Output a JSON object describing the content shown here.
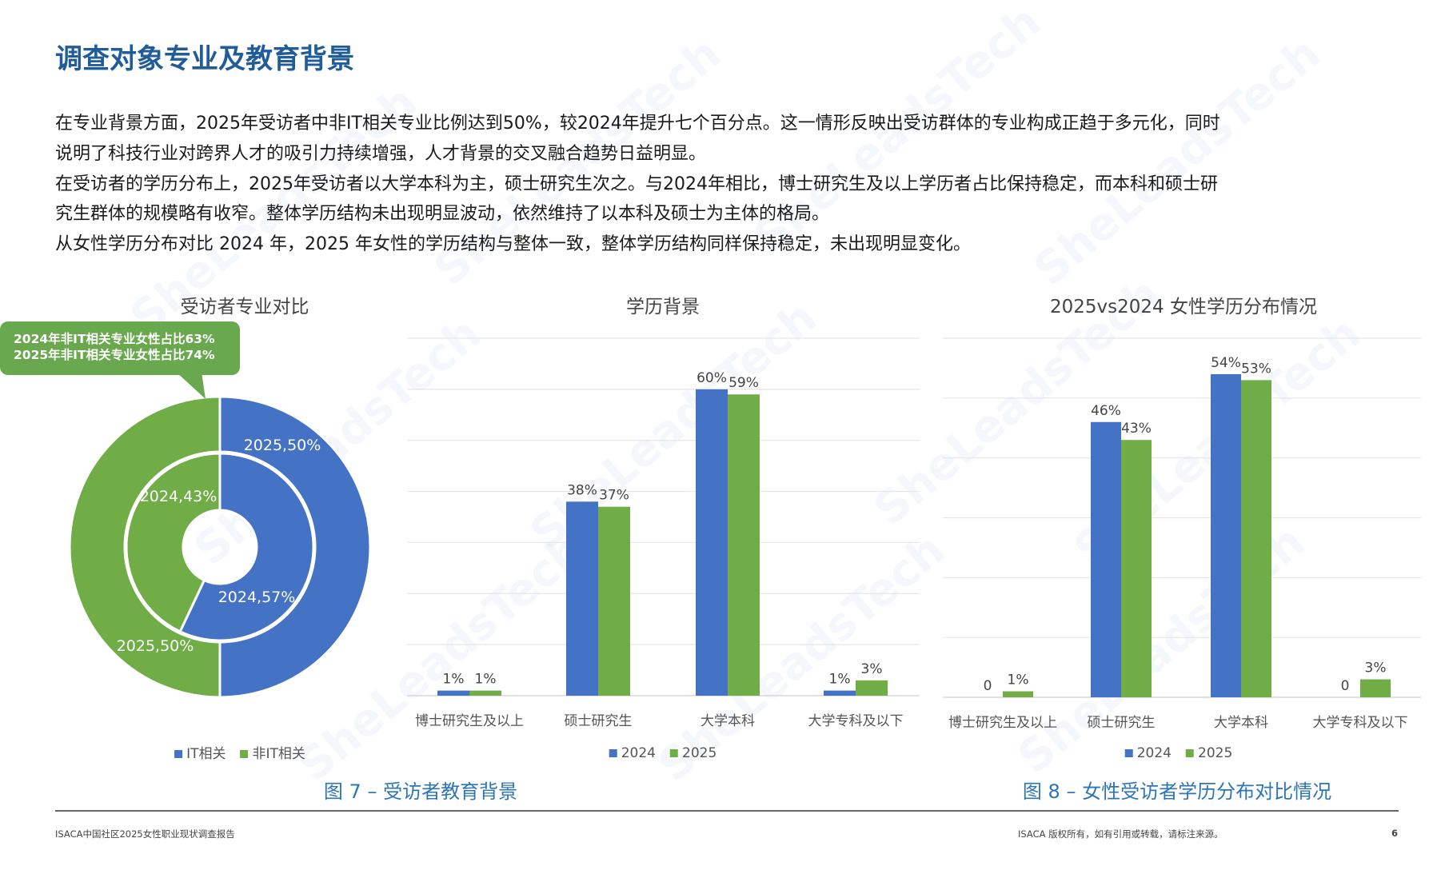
{
  "watermark": "SheLeadsTech",
  "page": {
    "title": "调查对象专业及教育背景",
    "paragraph_lines": [
      "在专业背景方面，2025年受访者中非IT相关专业比例达到50%，较2024年提升七个百分点。这一情形反映出受访群体的专业构成正趋于多元化，同时",
      "说明了科技行业对跨界人才的吸引力持续增强，人才背景的交叉融合趋势日益明显。",
      "在受访者的学历分布上，2025年受访者以大学本科为主，硕士研究生次之。与2024年相比，博士研究生及以上学历者占比保持稳定，而本科和硕士研",
      "究生群体的规模略有收窄。整体学历结构未出现明显波动，依然维持了以本科及硕士为主体的格局。",
      "从女性学历分布对比 2024 年，2025 年女性的学历结构与整体一致，整体学历结构同样保持稳定，未出现明显变化。"
    ],
    "caption_fig7": "图 7 – 受访者教育背景",
    "caption_fig8": "图 8 – 女性受访者学历分布对比情况",
    "footer_left": "ISACA中国社区2025女性职业现状调查报告",
    "footer_right": "ISACA 版权所有，如有引用或转载，请标注来源。",
    "page_number": "6"
  },
  "colors": {
    "blue": "#4472c4",
    "green": "#70ad47",
    "title": "#1f5c99",
    "caption": "#2e75b6"
  },
  "chart_data": [
    {
      "type": "pie",
      "variant": "double-donut",
      "title": "受访者专业对比",
      "callout": [
        "2024年非IT相关专业女性占比63%",
        "2025年非IT相关专业女性占比74%"
      ],
      "legend": [
        "IT相关",
        "非IT相关"
      ],
      "legend_placement": "bottom",
      "rings": [
        {
          "name": "2024",
          "ring": "inner",
          "values": [
            57,
            43
          ],
          "labels": [
            "2024,57%",
            "2024,43%"
          ]
        },
        {
          "name": "2025",
          "ring": "outer",
          "values": [
            50,
            50
          ],
          "labels": [
            "2025,50%",
            "2025,50%"
          ]
        }
      ]
    },
    {
      "type": "bar",
      "title": "学历背景",
      "categories": [
        "博士研究生及以上",
        "硕士研究生",
        "大学本科",
        "大学专科及以下"
      ],
      "series": [
        {
          "name": "2024",
          "values": [
            1,
            38,
            60,
            1
          ],
          "labels": [
            "1%",
            "38%",
            "60%",
            "1%"
          ]
        },
        {
          "name": "2025",
          "values": [
            1,
            37,
            59,
            3
          ],
          "labels": [
            "1%",
            "37%",
            "59%",
            "3%"
          ]
        }
      ],
      "ylim": [
        0,
        70
      ],
      "ystep": 10,
      "grid": true,
      "legend_placement": "bottom"
    },
    {
      "type": "bar",
      "title": "2025vs2024 女性学历分布情况",
      "categories": [
        "博士研究生及以上",
        "硕士研究生",
        "大学本科",
        "大学专科及以下"
      ],
      "series": [
        {
          "name": "2024",
          "values": [
            0,
            46,
            54,
            0
          ],
          "labels": [
            "0",
            "46%",
            "54%",
            "0"
          ]
        },
        {
          "name": "2025",
          "values": [
            1,
            43,
            53,
            3
          ],
          "labels": [
            "1%",
            "43%",
            "53%",
            "3%"
          ]
        }
      ],
      "ylim": [
        0,
        60
      ],
      "ystep": 10,
      "grid": true,
      "legend_placement": "bottom"
    }
  ]
}
